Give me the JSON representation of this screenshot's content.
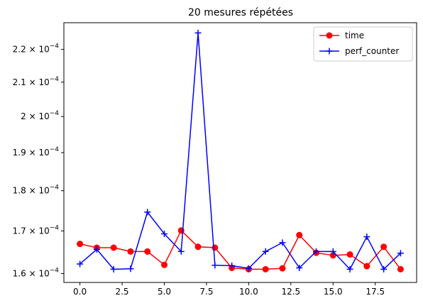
{
  "chart_data": {
    "type": "line",
    "title": "20 mesures répétées",
    "xlabel": "",
    "ylabel": "",
    "yscale": "log",
    "xlim": [
      -0.95,
      19.95
    ],
    "ylim": [
      0.000158,
      0.0002285
    ],
    "grid": false,
    "legend_position": "top-right",
    "x": [
      0,
      1,
      2,
      3,
      4,
      5,
      6,
      7,
      8,
      9,
      10,
      11,
      12,
      13,
      14,
      15,
      16,
      17,
      18,
      19
    ],
    "x_ticks": [
      {
        "value": 0,
        "label": "0.0"
      },
      {
        "value": 2.5,
        "label": "2.5"
      },
      {
        "value": 5,
        "label": "5.0"
      },
      {
        "value": 7.5,
        "label": "7.5"
      },
      {
        "value": 10,
        "label": "10.0"
      },
      {
        "value": 12.5,
        "label": "12.5"
      },
      {
        "value": 15,
        "label": "15.0"
      },
      {
        "value": 17.5,
        "label": "17.5"
      }
    ],
    "y_ticks": [
      {
        "value": 0.00016,
        "mant": "1.6",
        "exp": "−4"
      },
      {
        "value": 0.00017,
        "mant": "1.7",
        "exp": "−4"
      },
      {
        "value": 0.00018,
        "mant": "1.8",
        "exp": "−4"
      },
      {
        "value": 0.00019,
        "mant": "1.9",
        "exp": "−4"
      },
      {
        "value": 0.0002,
        "mant": "2",
        "exp": "−4"
      },
      {
        "value": 0.00021,
        "mant": "2.1",
        "exp": "−4"
      },
      {
        "value": 0.00022,
        "mant": "2.2",
        "exp": "−4"
      }
    ],
    "series": [
      {
        "name": "time",
        "color": "#ff0000",
        "marker": "circle",
        "values": [
          0.0001669,
          0.000166,
          0.000166,
          0.0001651,
          0.0001651,
          0.000162,
          0.0001701,
          0.0001662,
          0.000166,
          0.0001613,
          0.000161,
          0.000161,
          0.0001612,
          0.000169,
          0.0001648,
          0.0001642,
          0.0001644,
          0.0001617,
          0.0001662,
          0.000161
        ]
      },
      {
        "name": "perf_counter",
        "color": "#0000ff",
        "marker": "plus",
        "values": [
          0.0001622,
          0.0001656,
          0.000161,
          0.0001611,
          0.0001746,
          0.0001693,
          0.0001651,
          0.0002252,
          0.0001619,
          0.0001618,
          0.0001612,
          0.0001651,
          0.0001672,
          0.0001613,
          0.0001651,
          0.0001651,
          0.000161,
          0.0001686,
          0.000161,
          0.0001647
        ]
      }
    ]
  }
}
